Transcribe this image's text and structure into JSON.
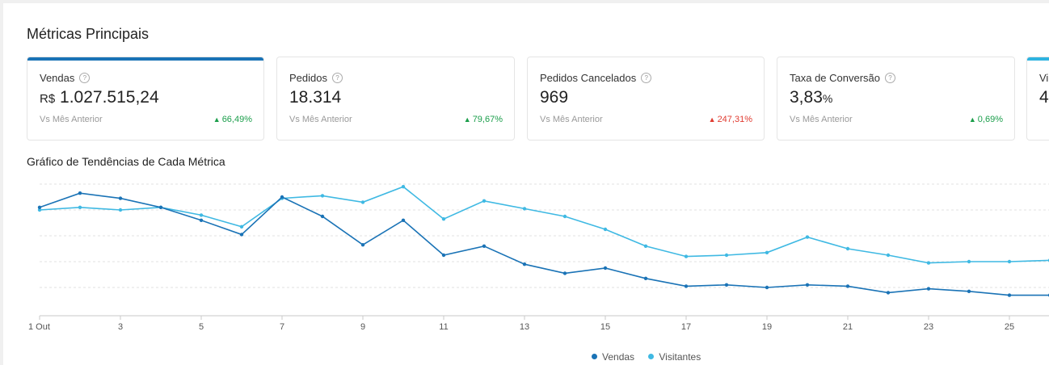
{
  "section_title": "Métricas Principais",
  "cards": [
    {
      "label": "Vendas",
      "currency": "R$",
      "value": "1.027.515,24",
      "unit": "",
      "compare": "Vs Mês Anterior",
      "delta": "66,49%",
      "trend": "up",
      "status": "good",
      "active": true
    },
    {
      "label": "Pedidos",
      "currency": "",
      "value": "18.314",
      "unit": "",
      "compare": "Vs Mês Anterior",
      "delta": "79,67%",
      "trend": "up",
      "status": "good",
      "active": false
    },
    {
      "label": "Pedidos Cancelados",
      "currency": "",
      "value": "969",
      "unit": "",
      "compare": "Vs Mês Anterior",
      "delta": "247,31%",
      "trend": "up",
      "status": "bad",
      "active": false
    },
    {
      "label": "Taxa de Conversão",
      "currency": "",
      "value": "3,83",
      "unit": "%",
      "compare": "Vs Mês Anterior",
      "delta": "0,69%",
      "trend": "up",
      "status": "good",
      "active": false
    },
    {
      "label": "Vi",
      "value": "4",
      "partial": true
    }
  ],
  "chart_title": "Gráfico de Tendências de Cada Métrica",
  "colors": {
    "vendas": "#1a73b6",
    "visitantes": "#3fb9e3",
    "good": "#1b9e4b",
    "bad": "#e03c31"
  },
  "chart_data": {
    "type": "line",
    "x": [
      1,
      2,
      3,
      4,
      5,
      6,
      7,
      8,
      9,
      10,
      11,
      12,
      13,
      14,
      15,
      16,
      17,
      18,
      19,
      20,
      21,
      22,
      23,
      24,
      25,
      26
    ],
    "tick_labels": [
      "1 Out",
      "3",
      "5",
      "7",
      "9",
      "11",
      "13",
      "15",
      "17",
      "19",
      "21",
      "23",
      "25"
    ],
    "tick_values": [
      1,
      3,
      5,
      7,
      9,
      11,
      13,
      15,
      17,
      19,
      21,
      23,
      25
    ],
    "series": [
      {
        "name": "Vendas",
        "color": "#1a73b6",
        "values": [
          82,
          93,
          89,
          82,
          72,
          61,
          90,
          75,
          53,
          72,
          45,
          52,
          38,
          31,
          35,
          27,
          21,
          22,
          20,
          22,
          21,
          16,
          19,
          17,
          14,
          14
        ]
      },
      {
        "name": "Visitantes",
        "color": "#3fb9e3",
        "values": [
          80,
          82,
          80,
          82,
          76,
          67,
          89,
          91,
          86,
          98,
          73,
          87,
          81,
          75,
          65,
          52,
          44,
          45,
          47,
          59,
          50,
          45,
          39,
          40,
          40,
          41
        ]
      }
    ],
    "ylim": [
      0,
      100
    ],
    "grid": true,
    "legend": "bottom-center"
  },
  "legend": {
    "vendas": "Vendas",
    "visitantes": "Visitantes"
  }
}
